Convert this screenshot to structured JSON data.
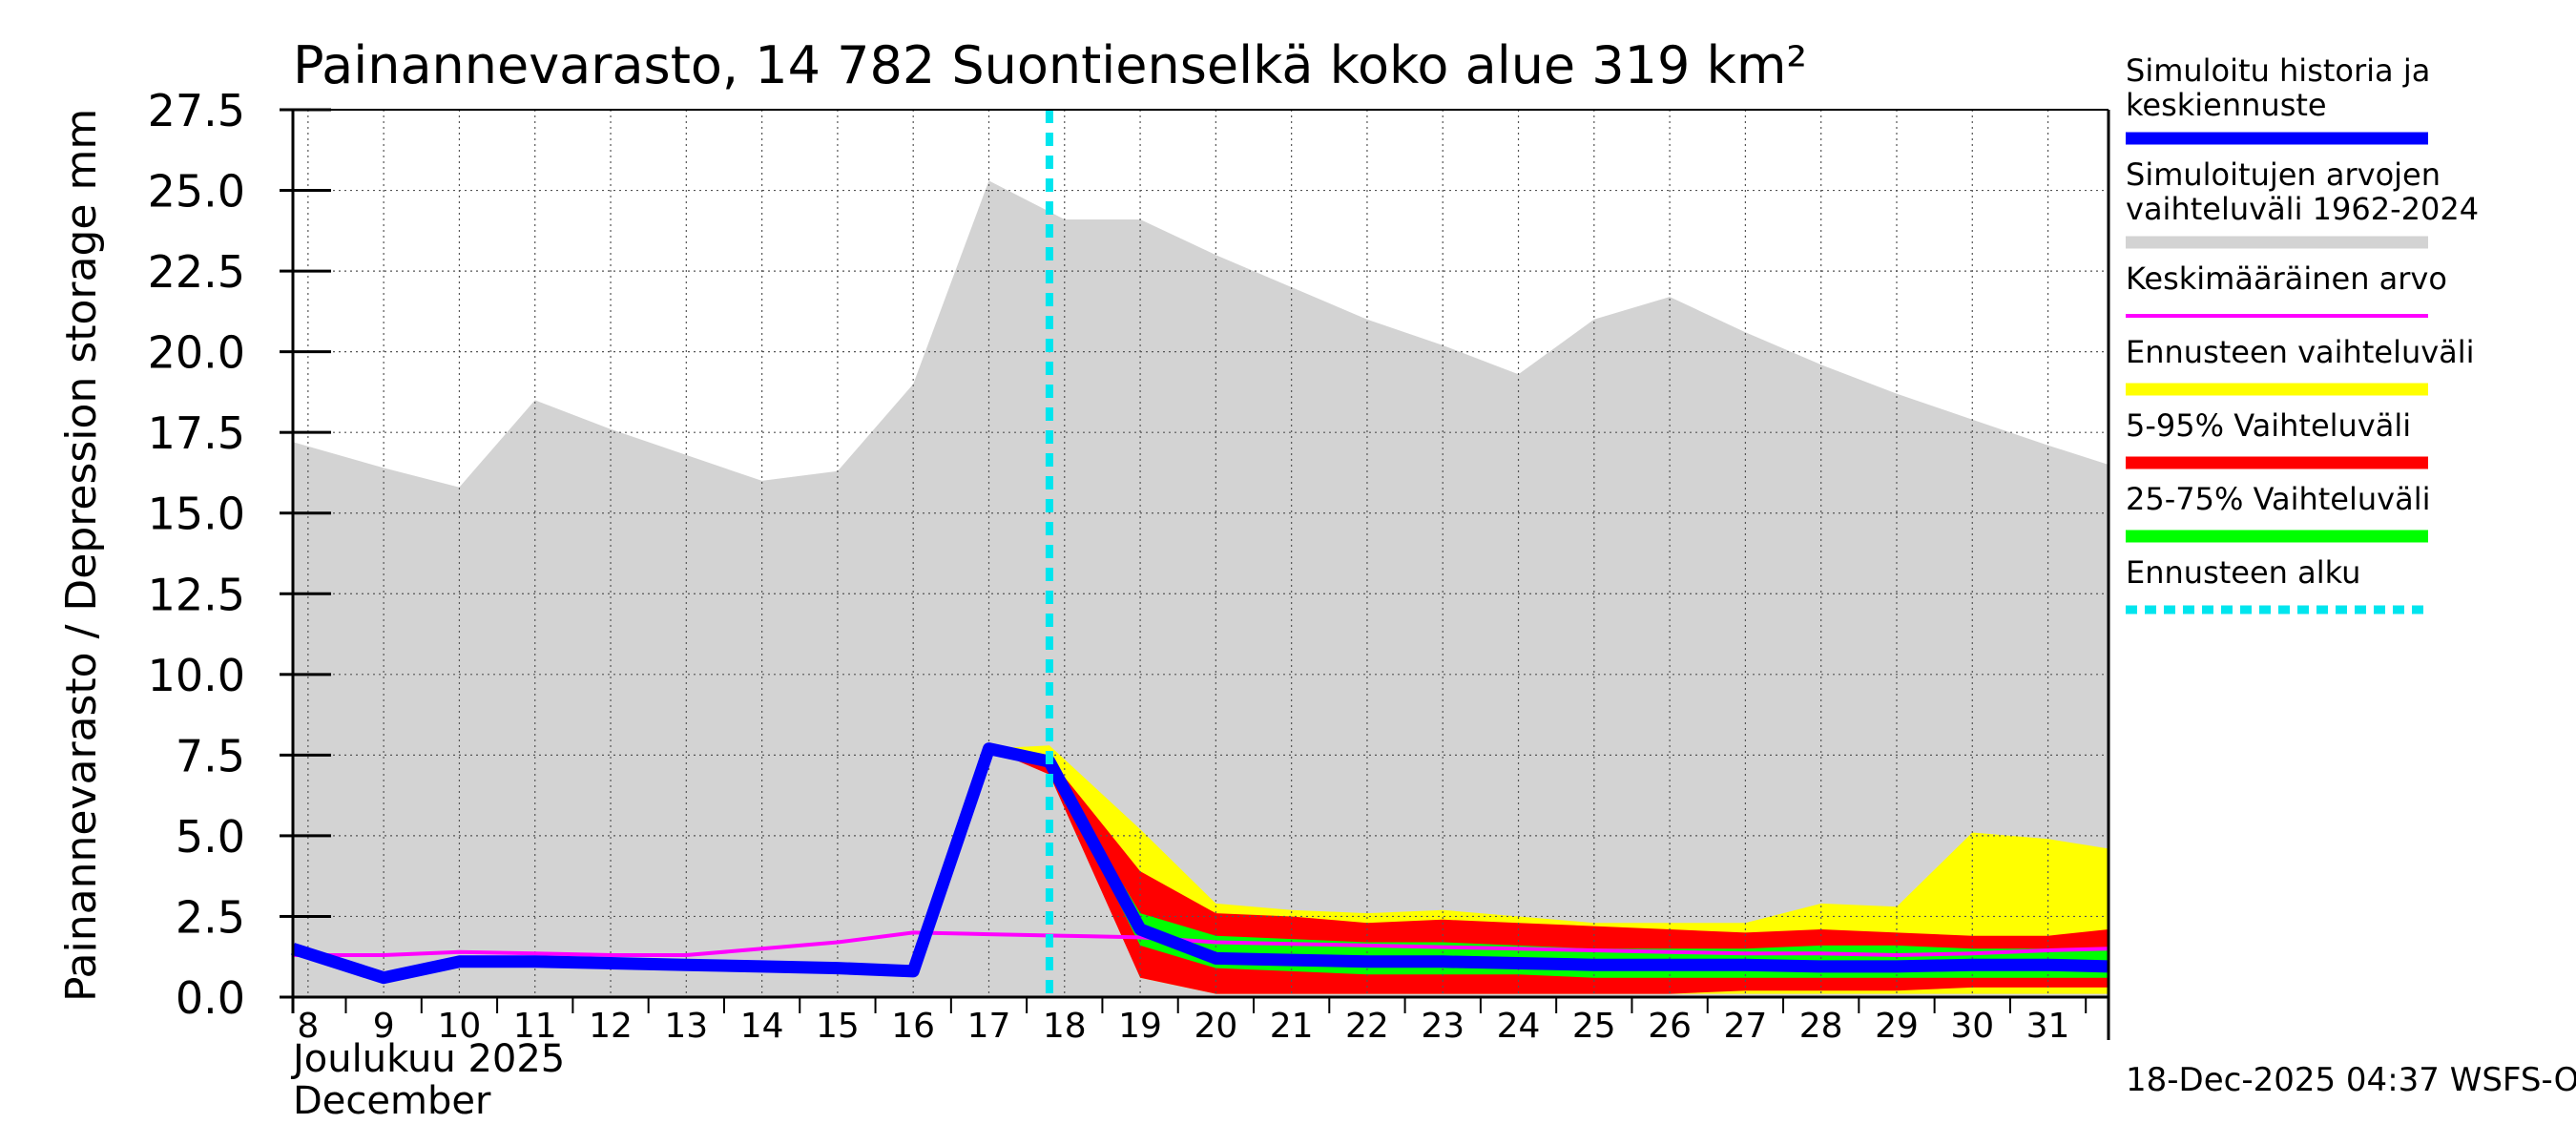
{
  "chart_data": {
    "type": "area",
    "title": "Painannevarasto, 14 782 Suontienselkä koko alue 319 km²",
    "ylabel": "Painannevarasto / Depression storage    mm",
    "ylim": [
      0,
      27.5
    ],
    "yticks": [
      "0.0",
      "2.5",
      "5.0",
      "7.5",
      "10.0",
      "12.5",
      "15.0",
      "17.5",
      "20.0",
      "22.5",
      "25.0",
      "27.5"
    ],
    "xlim": [
      7.8,
      31.8
    ],
    "x_tick_labels": [
      "8",
      "9",
      "10",
      "11",
      "12",
      "13",
      "14",
      "15",
      "16",
      "17",
      "18",
      "19",
      "20",
      "21",
      "22",
      "23",
      "24",
      "25",
      "26",
      "27",
      "28",
      "29",
      "30",
      "31"
    ],
    "xlabel_line1": "Joulukuu  2025",
    "xlabel_line2": "December",
    "footer": "18-Dec-2025 04:37 WSFS-O",
    "forecast_start_x": 17.8,
    "sim_range": {
      "x": [
        7.8,
        9,
        10,
        11,
        12,
        13,
        14,
        15,
        16,
        17,
        18,
        19,
        20,
        21,
        22,
        23,
        24,
        25,
        26,
        27,
        28,
        29,
        30,
        31,
        31.8
      ],
      "upper": [
        17.2,
        16.4,
        15.8,
        18.5,
        17.6,
        16.8,
        16.0,
        16.3,
        19.0,
        25.3,
        24.1,
        24.1,
        23.0,
        22.0,
        21.0,
        20.2,
        19.3,
        21.0,
        21.7,
        20.6,
        19.6,
        18.7,
        17.9,
        17.1,
        16.5
      ],
      "lower": [
        0,
        0,
        0,
        0,
        0,
        0,
        0,
        0,
        0,
        0,
        0,
        0,
        0,
        0,
        0,
        0,
        0,
        0,
        0,
        0,
        0,
        0,
        0,
        0,
        0
      ]
    },
    "forecast_range": {
      "x": [
        17.0,
        17.8,
        19,
        20,
        21,
        22,
        23,
        24,
        25,
        26,
        27,
        28,
        29,
        30,
        31,
        31.8
      ],
      "upper": [
        7.7,
        7.8,
        5.2,
        2.9,
        2.7,
        2.6,
        2.7,
        2.5,
        2.3,
        2.3,
        2.3,
        2.9,
        2.8,
        5.1,
        4.9,
        4.6
      ],
      "lower": [
        7.7,
        7.3,
        0.6,
        0.1,
        0.1,
        0.1,
        0.1,
        0.1,
        0.1,
        0.1,
        0.1,
        0.1,
        0.1,
        0.1,
        0.1,
        0.1
      ]
    },
    "range_5_95": {
      "x": [
        17.0,
        17.8,
        19,
        20,
        21,
        22,
        23,
        24,
        25,
        26,
        27,
        28,
        29,
        30,
        31,
        31.8
      ],
      "upper": [
        7.7,
        7.4,
        3.9,
        2.6,
        2.5,
        2.3,
        2.4,
        2.3,
        2.2,
        2.1,
        2.0,
        2.1,
        2.0,
        1.9,
        1.9,
        2.1
      ],
      "lower": [
        7.7,
        6.9,
        0.6,
        0.1,
        0.1,
        0.1,
        0.1,
        0.1,
        0.1,
        0.1,
        0.2,
        0.2,
        0.2,
        0.3,
        0.3,
        0.3
      ]
    },
    "range_25_75": {
      "x": [
        17.0,
        17.8,
        19,
        20,
        21,
        22,
        23,
        24,
        25,
        26,
        27,
        28,
        29,
        30,
        31,
        31.8
      ],
      "upper": [
        7.7,
        7.3,
        2.6,
        1.9,
        1.8,
        1.7,
        1.7,
        1.6,
        1.5,
        1.5,
        1.5,
        1.6,
        1.6,
        1.5,
        1.5,
        1.5
      ],
      "lower": [
        7.7,
        7.2,
        1.6,
        0.9,
        0.8,
        0.7,
        0.7,
        0.7,
        0.6,
        0.6,
        0.6,
        0.6,
        0.6,
        0.6,
        0.6,
        0.6
      ]
    },
    "mean": {
      "x": [
        7.8,
        9,
        10,
        11,
        12,
        13,
        14,
        15,
        16,
        17,
        18,
        19,
        20,
        21,
        22,
        23,
        24,
        25,
        26,
        27,
        28,
        29,
        30,
        31,
        31.8
      ],
      "y": [
        1.3,
        1.3,
        1.4,
        1.35,
        1.3,
        1.3,
        1.5,
        1.7,
        2.0,
        1.95,
        1.9,
        1.85,
        1.7,
        1.65,
        1.6,
        1.55,
        1.5,
        1.45,
        1.4,
        1.35,
        1.35,
        1.3,
        1.35,
        1.45,
        1.5
      ]
    },
    "history_median": {
      "x": [
        7.8,
        9,
        10,
        11,
        12,
        13,
        14,
        15,
        16,
        17,
        17.8,
        19,
        20,
        21,
        22,
        23,
        24,
        25,
        26,
        27,
        28,
        29,
        30,
        31,
        31.8
      ],
      "y": [
        1.5,
        0.6,
        1.1,
        1.1,
        1.05,
        1.0,
        0.95,
        0.9,
        0.8,
        7.7,
        7.3,
        2.1,
        1.2,
        1.15,
        1.1,
        1.1,
        1.05,
        1.0,
        1.0,
        1.0,
        0.95,
        0.95,
        1.0,
        1.0,
        0.95
      ]
    },
    "legend": [
      {
        "label1": "Simuloitu historia ja",
        "label2": "keskiennuste",
        "color": "#0000ff",
        "style": "solid"
      },
      {
        "label1": "Simuloitujen arvojen",
        "label2": "vaihteluväli 1962-2024",
        "color": "#d3d3d3",
        "style": "solid"
      },
      {
        "label1": "Keskimääräinen arvo",
        "label2": "",
        "color": "#ff00ff",
        "style": "thin"
      },
      {
        "label1": "Ennusteen vaihteluväli",
        "label2": "",
        "color": "#ffff00",
        "style": "solid"
      },
      {
        "label1": "5-95% Vaihteluväli",
        "label2": "",
        "color": "#ff0000",
        "style": "solid"
      },
      {
        "label1": "25-75% Vaihteluväli",
        "label2": "",
        "color": "#00ff00",
        "style": "solid"
      },
      {
        "label1": "Ennusteen alku",
        "label2": "",
        "color": "#00e5ee",
        "style": "dashed"
      }
    ]
  }
}
